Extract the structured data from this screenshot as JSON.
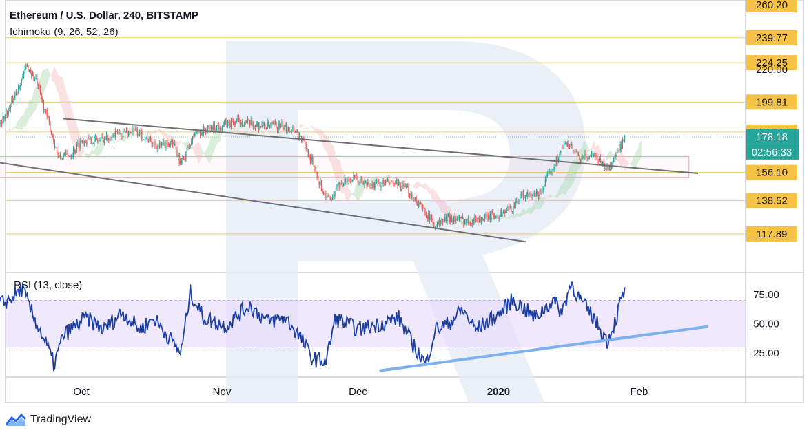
{
  "header": {
    "title": "Ethereum / U.S. Dollar, 240, BITSTAMP",
    "indicator": "Ichimoku (9, 26, 52, 26)"
  },
  "rsi": {
    "label": "RSI (13, close)"
  },
  "brand": {
    "name": "TradingView"
  },
  "colors": {
    "up": "#26a69a",
    "down": "#ef5350",
    "level_line": "#f5c242",
    "price_tag_bg": "#f6c245",
    "current_price": "#26a69a",
    "rsi_line": "#1c3fa3",
    "rsi_band": "#e6d8fb",
    "rsi_trend": "#7db2ef",
    "channel": "#6e6e74",
    "zone": "#f39aa8",
    "watermark": "#e4ebf6"
  },
  "chart_data": [
    {
      "type": "candlestick",
      "title": "Ethereum / U.S. Dollar, 240, BITSTAMP",
      "indicator": "Ichimoku (9, 26, 52, 26)",
      "x_tick_labels": [
        "Oct",
        "Nov",
        "Dec",
        "2020",
        "Feb"
      ],
      "y_axis_labels": [
        "260.20",
        "239.77",
        "224.25",
        "220.00",
        "199.81",
        "181.18",
        "178.18",
        "02:56:33",
        "156.10",
        "138.52",
        "117.89"
      ],
      "horizontal_levels": [
        239.77,
        224.25,
        199.81,
        181.18,
        156.1,
        138.52,
        117.89
      ],
      "current_price": 178.18,
      "countdown": "02:56:33",
      "ylim": [
        110,
        262
      ],
      "price_path": [
        [
          "2019-09-12",
          183
        ],
        [
          "2019-09-15",
          195
        ],
        [
          "2019-09-19",
          222
        ],
        [
          "2019-09-21",
          213
        ],
        [
          "2019-09-24",
          185
        ],
        [
          "2019-09-26",
          165
        ],
        [
          "2019-09-29",
          168
        ],
        [
          "2019-10-01",
          176
        ],
        [
          "2019-10-05",
          176
        ],
        [
          "2019-10-09",
          180
        ],
        [
          "2019-10-13",
          182
        ],
        [
          "2019-10-18",
          172
        ],
        [
          "2019-10-21",
          175
        ],
        [
          "2019-10-23",
          161
        ],
        [
          "2019-10-26",
          180
        ],
        [
          "2019-10-30",
          184
        ],
        [
          "2019-11-05",
          188
        ],
        [
          "2019-11-09",
          185
        ],
        [
          "2019-11-13",
          185
        ],
        [
          "2019-11-17",
          183
        ],
        [
          "2019-11-19",
          175
        ],
        [
          "2019-11-21",
          162
        ],
        [
          "2019-11-23",
          146
        ],
        [
          "2019-11-25",
          137
        ],
        [
          "2019-11-27",
          150
        ],
        [
          "2019-11-30",
          152
        ],
        [
          "2019-12-04",
          148
        ],
        [
          "2019-12-08",
          150
        ],
        [
          "2019-12-12",
          145
        ],
        [
          "2019-12-16",
          131
        ],
        [
          "2019-12-18",
          123
        ],
        [
          "2019-12-21",
          128
        ],
        [
          "2019-12-25",
          126
        ],
        [
          "2019-12-28",
          127
        ],
        [
          "2020-01-01",
          130
        ],
        [
          "2020-01-04",
          134
        ],
        [
          "2020-01-06",
          142
        ],
        [
          "2020-01-08",
          141
        ],
        [
          "2020-01-10",
          143
        ],
        [
          "2020-01-14",
          165
        ],
        [
          "2020-01-16",
          175
        ],
        [
          "2020-01-19",
          164
        ],
        [
          "2020-01-22",
          168
        ],
        [
          "2020-01-25",
          158
        ],
        [
          "2020-01-27",
          167
        ],
        [
          "2020-01-28",
          172
        ],
        [
          "2020-01-29",
          178
        ]
      ],
      "channel_lines": [
        {
          "from": [
            "2019-09-27",
            189.5
          ],
          "to": [
            "2020-02-14",
            155.5
          ]
        },
        {
          "from": [
            "2019-09-11",
            163
          ],
          "to": [
            "2020-01-07",
            113
          ]
        }
      ],
      "support_zone": {
        "from": "2019-09-13",
        "to": "2020-02-12",
        "y": [
          153,
          166
        ]
      }
    },
    {
      "type": "line",
      "title": "RSI (13, close)",
      "y_tick_labels": [
        "75.00",
        "50.00",
        "25.00"
      ],
      "band": [
        30,
        70
      ],
      "ylim": [
        2,
        90
      ],
      "series": [
        {
          "values": [
            [
              "2019-09-12",
              65
            ],
            [
              "2019-09-15",
              70
            ],
            [
              "2019-09-18",
              80
            ],
            [
              "2019-09-20",
              60
            ],
            [
              "2019-09-23",
              35
            ],
            [
              "2019-09-25",
              15
            ],
            [
              "2019-09-27",
              40
            ],
            [
              "2019-10-02",
              55
            ],
            [
              "2019-10-06",
              45
            ],
            [
              "2019-10-10",
              60
            ],
            [
              "2019-10-14",
              45
            ],
            [
              "2019-10-17",
              55
            ],
            [
              "2019-10-20",
              40
            ],
            [
              "2019-10-23",
              25
            ],
            [
              "2019-10-25",
              77
            ],
            [
              "2019-10-28",
              55
            ],
            [
              "2019-11-02",
              48
            ],
            [
              "2019-11-07",
              66
            ],
            [
              "2019-11-11",
              52
            ],
            [
              "2019-11-15",
              55
            ],
            [
              "2019-11-18",
              40
            ],
            [
              "2019-11-21",
              20
            ],
            [
              "2019-11-24",
              18
            ],
            [
              "2019-11-26",
              55
            ],
            [
              "2019-12-01",
              45
            ],
            [
              "2019-12-06",
              50
            ],
            [
              "2019-12-10",
              55
            ],
            [
              "2019-12-13",
              33
            ],
            [
              "2019-12-16",
              15
            ],
            [
              "2019-12-18",
              45
            ],
            [
              "2019-12-21",
              50
            ],
            [
              "2019-12-24",
              62
            ],
            [
              "2019-12-27",
              45
            ],
            [
              "2020-01-01",
              58
            ],
            [
              "2020-01-04",
              70
            ],
            [
              "2020-01-06",
              65
            ],
            [
              "2020-01-09",
              55
            ],
            [
              "2020-01-13",
              70
            ],
            [
              "2020-01-15",
              60
            ],
            [
              "2020-01-17",
              85
            ],
            [
              "2020-01-19",
              70
            ],
            [
              "2020-01-22",
              55
            ],
            [
              "2020-01-25",
              35
            ],
            [
              "2020-01-27",
              55
            ],
            [
              "2020-01-28",
              70
            ],
            [
              "2020-01-29",
              78
            ]
          ]
        }
      ],
      "trend_line": {
        "from": [
          "2019-12-06",
          10
        ],
        "to": [
          "2020-02-16",
          47.5
        ]
      }
    }
  ]
}
